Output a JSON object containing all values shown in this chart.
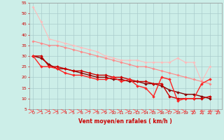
{
  "background_color": "#cceee8",
  "grid_color": "#aacccc",
  "xlabel": "Vent moyen/en rafales ( km/h )",
  "xlim": [
    -0.5,
    23.5
  ],
  "ylim": [
    5,
    55
  ],
  "yticks": [
    5,
    10,
    15,
    20,
    25,
    30,
    35,
    40,
    45,
    50,
    55
  ],
  "xticks": [
    0,
    1,
    2,
    3,
    4,
    5,
    6,
    7,
    8,
    9,
    10,
    11,
    12,
    13,
    14,
    15,
    16,
    17,
    18,
    19,
    20,
    21,
    22,
    23
  ],
  "series": [
    {
      "x": [
        0,
        1,
        2,
        3,
        4,
        5,
        6,
        7,
        8,
        9,
        10,
        11,
        12,
        13,
        14,
        15,
        16,
        17,
        18,
        19,
        20,
        21,
        22
      ],
      "y": [
        53,
        46,
        38,
        37,
        36,
        35,
        34,
        33,
        32,
        30,
        29,
        28,
        28,
        28,
        27,
        27,
        27,
        27,
        29,
        27,
        27,
        18,
        25
      ],
      "color": "#ffbbbb",
      "marker": "D",
      "markersize": 1.8,
      "linewidth": 0.8
    },
    {
      "x": [
        0,
        1,
        2,
        3,
        4,
        5,
        6,
        7,
        8,
        9,
        10,
        11,
        12,
        13,
        14,
        15,
        16,
        17,
        18,
        19,
        20,
        21,
        22
      ],
      "y": [
        37,
        36,
        35,
        35,
        34,
        33,
        32,
        31,
        30,
        29,
        28,
        27,
        26,
        25,
        25,
        24,
        23,
        22,
        21,
        20,
        19,
        18,
        17
      ],
      "color": "#ff8888",
      "marker": "D",
      "markersize": 1.8,
      "linewidth": 0.8
    },
    {
      "x": [
        0,
        1,
        2,
        3,
        4,
        5,
        6,
        7,
        8,
        9,
        10,
        11,
        12,
        13,
        14,
        15,
        16,
        17,
        18,
        19,
        20,
        21,
        22
      ],
      "y": [
        30,
        29,
        26,
        24,
        24,
        23,
        22,
        21,
        20,
        20,
        19,
        19,
        18,
        18,
        17,
        17,
        16,
        14,
        13,
        12,
        12,
        11,
        10
      ],
      "color": "#880000",
      "marker": "D",
      "markersize": 2.0,
      "linewidth": 1.0
    },
    {
      "x": [
        0,
        1,
        2,
        3,
        4,
        5,
        6,
        7,
        8,
        9,
        10,
        11,
        12,
        13,
        14,
        15,
        16,
        17,
        18,
        19,
        20,
        21,
        22
      ],
      "y": [
        30,
        30,
        25,
        25,
        24,
        23,
        23,
        22,
        21,
        21,
        20,
        20,
        19,
        18,
        18,
        17,
        17,
        11,
        10,
        10,
        10,
        10,
        11
      ],
      "color": "#cc0000",
      "marker": "D",
      "markersize": 2.0,
      "linewidth": 1.0
    },
    {
      "x": [
        0,
        1,
        2,
        3,
        4,
        5,
        6,
        7,
        8,
        9,
        10,
        11,
        12,
        13,
        14,
        15,
        16,
        17,
        18,
        19,
        20,
        21,
        22
      ],
      "y": [
        30,
        25,
        25,
        24,
        22,
        21,
        21,
        20,
        19,
        19,
        20,
        18,
        19,
        16,
        15,
        11,
        20,
        19,
        9,
        10,
        10,
        17,
        19
      ],
      "color": "#ff2222",
      "marker": "D",
      "markersize": 2.0,
      "linewidth": 1.0
    }
  ],
  "arrow_color": "#ff5555",
  "arrow_directions": [
    0,
    0,
    0,
    0,
    0,
    0,
    0,
    0,
    0,
    0,
    0,
    0,
    0,
    0,
    0,
    0,
    0,
    0,
    0,
    0,
    1,
    2,
    2,
    1
  ]
}
